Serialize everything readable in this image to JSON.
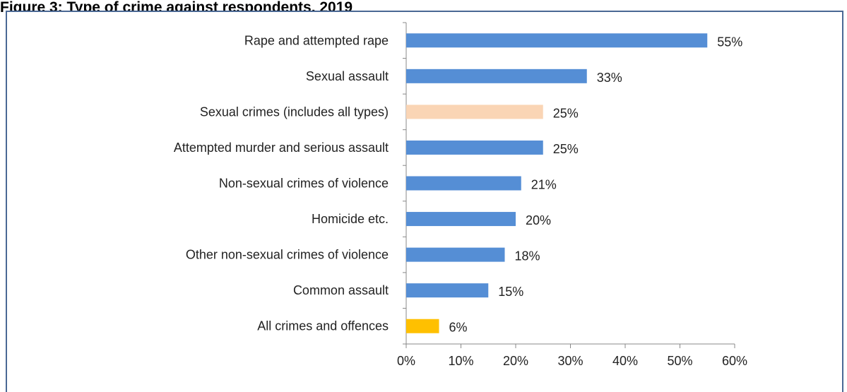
{
  "figure": {
    "title": "Figure 3: Type of crime against respondents, 2019"
  },
  "colors": {
    "default_bar": "#558ed5",
    "highlight_bar": "#fad5b5",
    "total_bar": "#ffc000",
    "axis": "#888888",
    "frame": "#4a6894"
  },
  "chart_data": {
    "type": "bar",
    "orientation": "horizontal",
    "categories": [
      "Rape and attempted rape",
      "Sexual assault",
      "Sexual crimes (includes all types)",
      "Attempted murder and serious assault",
      "Non-sexual crimes of violence",
      "Homicide etc.",
      "Other non-sexual crimes of violence",
      "Common assault",
      "All crimes and offences"
    ],
    "values": [
      55,
      33,
      25,
      25,
      21,
      20,
      18,
      15,
      6
    ],
    "value_labels": [
      "55%",
      "33%",
      "25%",
      "25%",
      "21%",
      "20%",
      "18%",
      "15%",
      "6%"
    ],
    "bar_colors": [
      "default",
      "default",
      "highlight",
      "default",
      "default",
      "default",
      "default",
      "default",
      "total"
    ],
    "xlim": [
      0,
      60
    ],
    "xticks": [
      "0%",
      "10%",
      "20%",
      "30%",
      "40%",
      "50%",
      "60%"
    ],
    "xlabel": "",
    "ylabel": "",
    "grid": false,
    "legend": false
  }
}
